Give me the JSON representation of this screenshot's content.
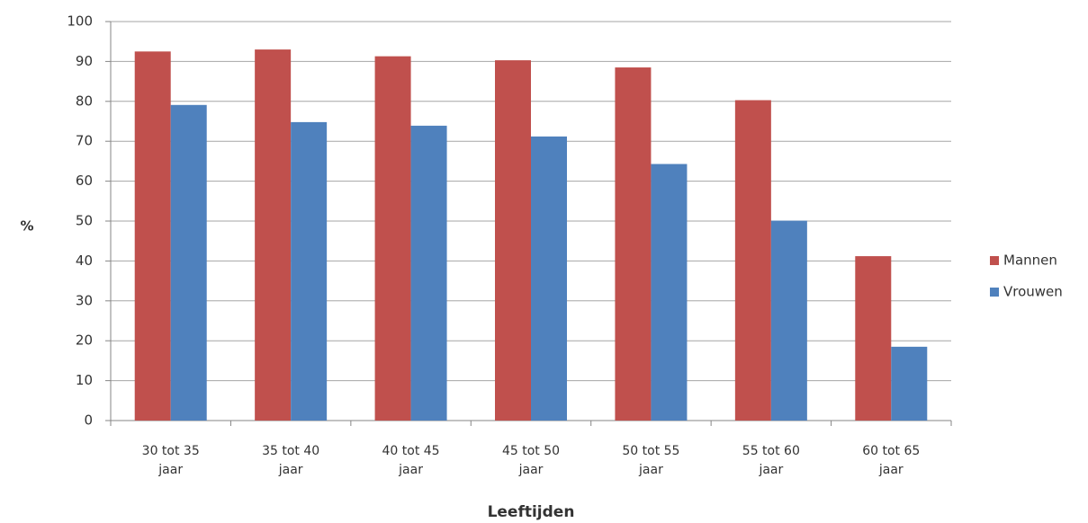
{
  "chart_data": {
    "type": "bar",
    "categories": [
      "30 tot 35 jaar",
      "35 tot 40 jaar",
      "40 tot 45 jaar",
      "45 tot 50 jaar",
      "50 tot 55 jaar",
      "55 tot 60 jaar",
      "60 tot 65 jaar"
    ],
    "series": [
      {
        "name": "Mannen",
        "color": "#c0504d",
        "values": [
          92.5,
          93,
          91.3,
          90.3,
          88.5,
          80.3,
          41.2
        ]
      },
      {
        "name": "Vrouwen",
        "color": "#4f81bd",
        "values": [
          79.1,
          74.8,
          73.9,
          71.2,
          64.3,
          50.1,
          18.5
        ]
      }
    ],
    "ylim": [
      0,
      100
    ],
    "yticks": [
      0,
      10,
      20,
      30,
      40,
      50,
      60,
      70,
      80,
      90,
      100
    ],
    "y_label": "%",
    "x_label": "Leeftijden",
    "grid": true,
    "legend": "right"
  }
}
